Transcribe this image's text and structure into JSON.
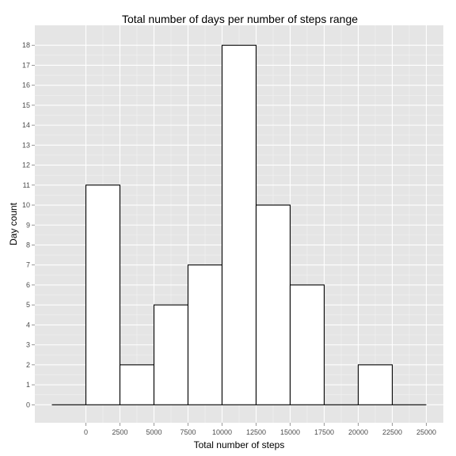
{
  "chart_data": {
    "type": "bar",
    "title": "Total number of days per number of steps range",
    "xlabel": "Total number of steps",
    "ylabel": "Day count",
    "bin_width": 2500,
    "bins": [
      {
        "start": -2500,
        "end": 0,
        "count": 0
      },
      {
        "start": 0,
        "end": 2500,
        "count": 11
      },
      {
        "start": 2500,
        "end": 5000,
        "count": 2
      },
      {
        "start": 5000,
        "end": 7500,
        "count": 5
      },
      {
        "start": 7500,
        "end": 10000,
        "count": 7
      },
      {
        "start": 10000,
        "end": 12500,
        "count": 18
      },
      {
        "start": 12500,
        "end": 15000,
        "count": 10
      },
      {
        "start": 15000,
        "end": 17500,
        "count": 6
      },
      {
        "start": 17500,
        "end": 20000,
        "count": 0
      },
      {
        "start": 20000,
        "end": 22500,
        "count": 2
      },
      {
        "start": 22500,
        "end": 25000,
        "count": 0
      }
    ],
    "xlim": [
      -3750,
      26250
    ],
    "ylim": [
      -0.9,
      19.0
    ],
    "x_ticks": [
      0,
      2500,
      5000,
      7500,
      10000,
      12500,
      15000,
      17500,
      20000,
      22500,
      25000
    ],
    "y_ticks": [
      0,
      1,
      2,
      3,
      4,
      5,
      6,
      7,
      8,
      9,
      10,
      11,
      12,
      13,
      14,
      15,
      16,
      17,
      18
    ],
    "grid": true,
    "legend": "none",
    "colors": {
      "panel_background": "#e5e5e5",
      "major_grid": "#ffffff",
      "minor_grid": "#f2f2f2",
      "bar_fill": "#ffffff",
      "bar_outline": "#000000",
      "tick_label": "#4d4d4d"
    }
  }
}
